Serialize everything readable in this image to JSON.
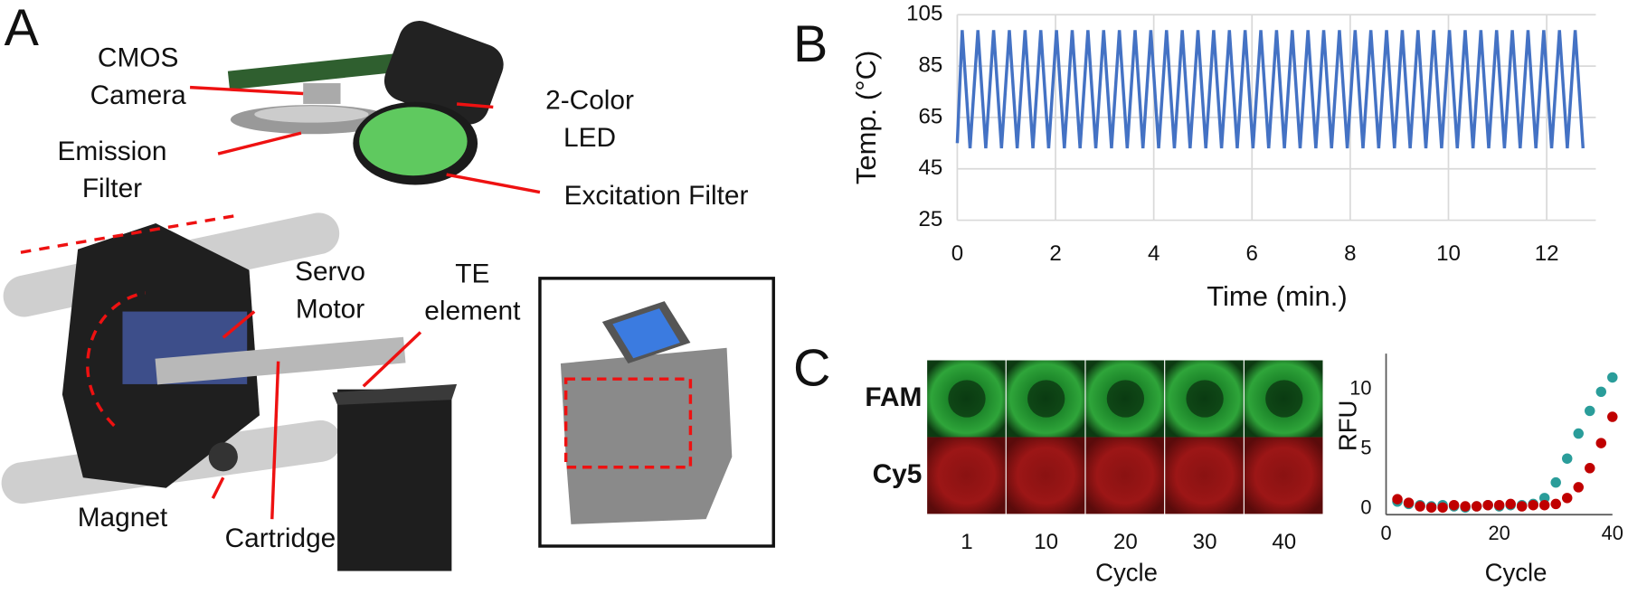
{
  "panel_labels": [
    "A",
    "B",
    "C"
  ],
  "figure_a": {
    "labels": [
      {
        "lines": [
          "CMOS",
          "Camera"
        ]
      },
      {
        "lines": [
          "2-Color",
          "LED"
        ]
      },
      {
        "lines": [
          "Emission",
          "Filter"
        ]
      },
      {
        "lines": [
          "Excitation Filter"
        ]
      },
      {
        "lines": [
          "Servo",
          "Motor"
        ]
      },
      {
        "lines": [
          "TE",
          "element"
        ]
      },
      {
        "lines": [
          "Magnet"
        ]
      },
      {
        "lines": [
          "Cartridge"
        ]
      }
    ]
  },
  "image_grid": {
    "rows": [
      "FAM",
      "Cy5"
    ],
    "row_colors": [
      "#1fae4b",
      "#c00000"
    ],
    "columns": [
      1,
      10,
      20,
      30,
      40
    ],
    "xlabel": "Cycle"
  },
  "chart_data": [
    {
      "type": "line",
      "xlabel": "Time (min.)",
      "ylabel": "Temp. (°C)",
      "color": "#4472c4",
      "grid": true,
      "xlim": [
        0,
        13
      ],
      "xticks": [
        0,
        2,
        4,
        6,
        8,
        10,
        12
      ],
      "ylim": [
        25,
        105
      ],
      "yticks": [
        25,
        45,
        65,
        85,
        105
      ],
      "x": [
        0,
        0.1,
        0.26,
        0.42,
        0.58,
        0.74,
        0.9,
        1.06,
        1.22,
        1.38,
        1.54,
        1.7,
        1.86,
        2.02,
        2.18,
        2.34,
        2.5,
        2.66,
        2.82,
        2.98,
        3.14,
        3.3,
        3.46,
        3.62,
        3.78,
        3.94,
        4.1,
        4.26,
        4.42,
        4.58,
        4.74,
        4.9,
        5.06,
        5.22,
        5.38,
        5.54,
        5.7,
        5.86,
        6.02,
        6.18,
        6.34,
        6.5,
        6.66,
        6.82,
        6.98,
        7.14,
        7.3,
        7.46,
        7.62,
        7.78,
        7.94,
        8.1,
        8.26,
        8.42,
        8.58,
        8.74,
        8.9,
        9.06,
        9.22,
        9.38,
        9.54,
        9.7,
        9.86,
        10.02,
        10.18,
        10.34,
        10.5,
        10.66,
        10.82,
        10.98,
        11.14,
        11.3,
        11.46,
        11.62,
        11.78,
        11.94,
        12.1,
        12.26,
        12.42,
        12.58,
        12.74
      ],
      "values": [
        55,
        99,
        53,
        99,
        53,
        99,
        53,
        99,
        53,
        99,
        53,
        99,
        53,
        99,
        53,
        99,
        53,
        99,
        53,
        99,
        53,
        99,
        53,
        99,
        53,
        99,
        53,
        99,
        53,
        99,
        53,
        99,
        53,
        99,
        53,
        99,
        53,
        99,
        53,
        99,
        53,
        99,
        53,
        99,
        53,
        99,
        53,
        99,
        53,
        99,
        53,
        99,
        53,
        99,
        53,
        99,
        53,
        99,
        53,
        99,
        53,
        99,
        53,
        99,
        53,
        99,
        53,
        99,
        53,
        99,
        53,
        99,
        53,
        99,
        53,
        99,
        53,
        99,
        53,
        99,
        53
      ]
    },
    {
      "type": "scatter",
      "xlabel": "Cycle",
      "ylabel": "RFU",
      "grid": false,
      "xlim": [
        0,
        40
      ],
      "xticks": [
        0,
        20,
        40
      ],
      "ylim": [
        -0.5,
        13
      ],
      "yticks": [
        0,
        5,
        10
      ],
      "x": [
        2,
        4,
        6,
        8,
        10,
        12,
        14,
        16,
        18,
        20,
        22,
        24,
        26,
        28,
        30,
        32,
        34,
        36,
        38,
        40
      ],
      "series": [
        {
          "color": "#2a9d9a",
          "values": [
            0.6,
            0.4,
            0.3,
            0.2,
            0.3,
            0.2,
            0.1,
            0.2,
            0.3,
            0.2,
            0.3,
            0.3,
            0.4,
            0.9,
            2.2,
            4.2,
            6.3,
            8.2,
            9.8,
            11
          ]
        },
        {
          "color": "#c00000",
          "values": [
            0.8,
            0.5,
            0.2,
            0.1,
            0.1,
            0.3,
            0.2,
            0.2,
            0.3,
            0.3,
            0.4,
            0.2,
            0.3,
            0.3,
            0.4,
            0.9,
            1.8,
            3.4,
            5.5,
            7.7
          ]
        }
      ]
    }
  ]
}
